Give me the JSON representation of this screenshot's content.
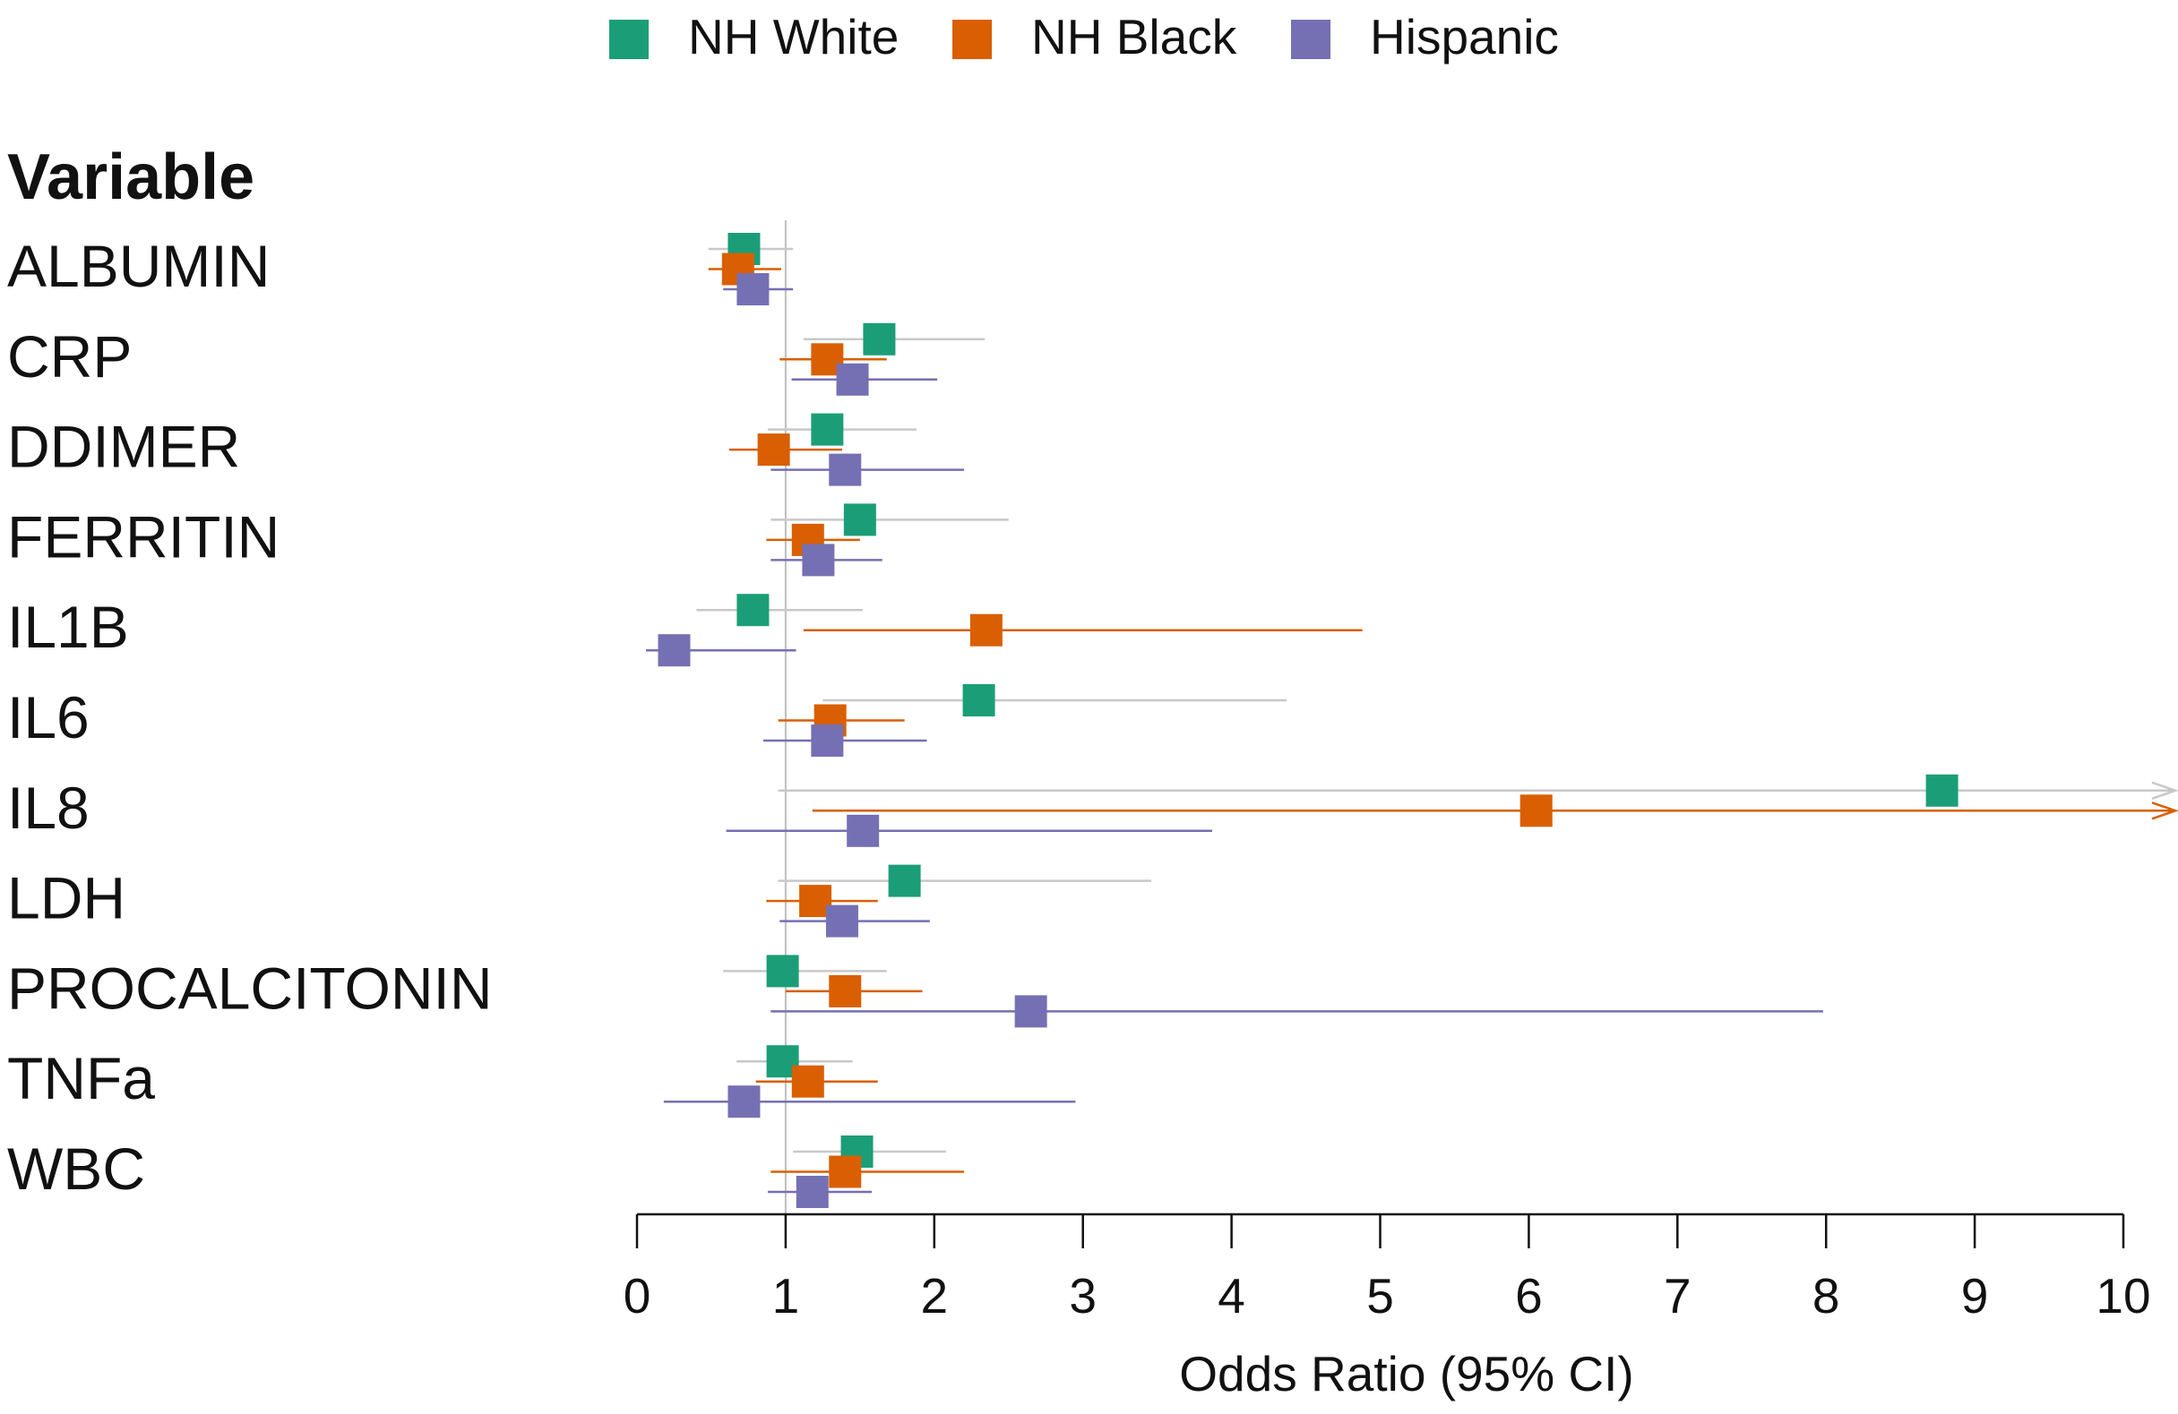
{
  "chart_data": {
    "type": "forest",
    "title": "",
    "column_header": "Variable",
    "xlabel": "Odds Ratio (95% CI)",
    "xlim": [
      0,
      10
    ],
    "xticks": [
      0,
      1,
      2,
      3,
      4,
      5,
      6,
      7,
      8,
      9,
      10
    ],
    "reference_line": 1,
    "legend_position": "top-center",
    "series": [
      {
        "name": "NH White",
        "color": "#1b9e77"
      },
      {
        "name": "NH Black",
        "color": "#d95f02"
      },
      {
        "name": "Hispanic",
        "color": "#7570b3"
      }
    ],
    "variables": [
      {
        "label": "ALBUMIN",
        "estimates": [
          {
            "or": 0.72,
            "lo": 0.48,
            "hi": 1.05
          },
          {
            "or": 0.68,
            "lo": 0.48,
            "hi": 0.97
          },
          {
            "or": 0.78,
            "lo": 0.58,
            "hi": 1.05
          }
        ]
      },
      {
        "label": "CRP",
        "estimates": [
          {
            "or": 1.63,
            "lo": 1.12,
            "hi": 2.34
          },
          {
            "or": 1.28,
            "lo": 0.96,
            "hi": 1.68
          },
          {
            "or": 1.45,
            "lo": 1.04,
            "hi": 2.02
          }
        ]
      },
      {
        "label": "DDIMER",
        "estimates": [
          {
            "or": 1.28,
            "lo": 0.88,
            "hi": 1.88
          },
          {
            "or": 0.92,
            "lo": 0.62,
            "hi": 1.38
          },
          {
            "or": 1.4,
            "lo": 0.9,
            "hi": 2.2
          }
        ]
      },
      {
        "label": "FERRITIN",
        "estimates": [
          {
            "or": 1.5,
            "lo": 0.9,
            "hi": 2.5
          },
          {
            "or": 1.15,
            "lo": 0.87,
            "hi": 1.5
          },
          {
            "or": 1.22,
            "lo": 0.9,
            "hi": 1.65
          }
        ]
      },
      {
        "label": "IL1B",
        "estimates": [
          {
            "or": 0.78,
            "lo": 0.4,
            "hi": 1.52
          },
          {
            "or": 2.35,
            "lo": 1.12,
            "hi": 4.88
          },
          {
            "or": 0.25,
            "lo": 0.06,
            "hi": 1.07
          }
        ]
      },
      {
        "label": "IL6",
        "estimates": [
          {
            "or": 2.3,
            "lo": 1.25,
            "hi": 4.37
          },
          {
            "or": 1.3,
            "lo": 0.95,
            "hi": 1.8
          },
          {
            "or": 1.28,
            "lo": 0.85,
            "hi": 1.95
          }
        ]
      },
      {
        "label": "IL8",
        "estimates": [
          {
            "or": 8.78,
            "lo": 0.95,
            "hi": 10,
            "arrow": true
          },
          {
            "or": 6.05,
            "lo": 1.18,
            "hi": 10,
            "arrow": true
          },
          {
            "or": 1.52,
            "lo": 0.6,
            "hi": 3.87
          }
        ]
      },
      {
        "label": "LDH",
        "estimates": [
          {
            "or": 1.8,
            "lo": 0.95,
            "hi": 3.46
          },
          {
            "or": 1.2,
            "lo": 0.87,
            "hi": 1.62
          },
          {
            "or": 1.38,
            "lo": 0.96,
            "hi": 1.97
          }
        ]
      },
      {
        "label": "PROCALCITONIN",
        "estimates": [
          {
            "or": 0.98,
            "lo": 0.58,
            "hi": 1.68
          },
          {
            "or": 1.4,
            "lo": 1.0,
            "hi": 1.92
          },
          {
            "or": 2.65,
            "lo": 0.9,
            "hi": 7.98
          }
        ]
      },
      {
        "label": "TNFa",
        "estimates": [
          {
            "or": 0.98,
            "lo": 0.67,
            "hi": 1.45
          },
          {
            "or": 1.15,
            "lo": 0.8,
            "hi": 1.62
          },
          {
            "or": 0.72,
            "lo": 0.18,
            "hi": 2.95
          }
        ]
      },
      {
        "label": "WBC",
        "estimates": [
          {
            "or": 1.48,
            "lo": 1.05,
            "hi": 2.08
          },
          {
            "or": 1.4,
            "lo": 0.9,
            "hi": 2.2
          },
          {
            "or": 1.18,
            "lo": 0.88,
            "hi": 1.58
          }
        ]
      }
    ]
  }
}
